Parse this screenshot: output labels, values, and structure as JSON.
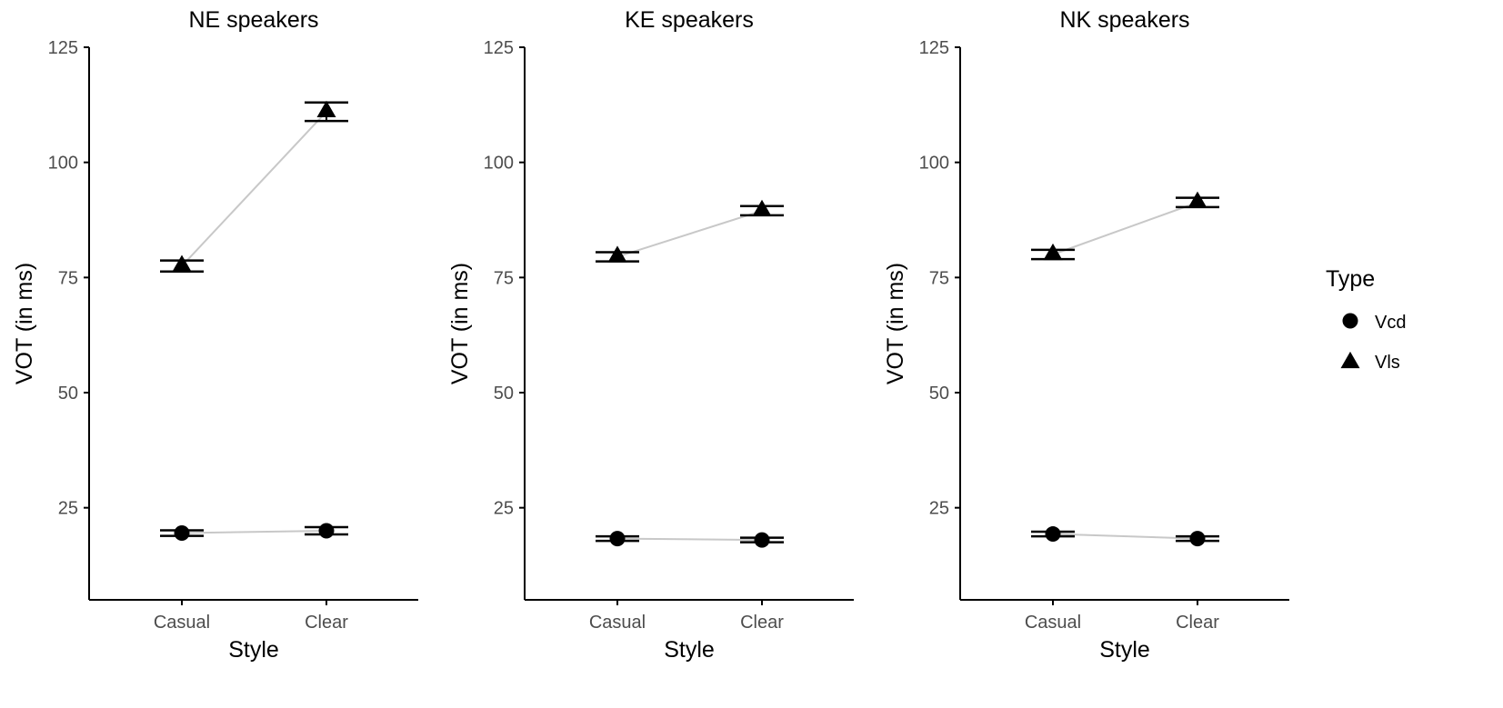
{
  "chart_data": {
    "type": "scatter",
    "x_categories": [
      "Casual",
      "Clear"
    ],
    "ylim": [
      5,
      125
    ],
    "y_ticks": [
      25,
      50,
      75,
      100,
      125
    ],
    "legend": {
      "title": "Type",
      "placement": "right",
      "entries": [
        {
          "label": "Vcd",
          "shape": "circle"
        },
        {
          "label": "Vls",
          "shape": "triangle"
        }
      ]
    },
    "colors": {
      "marker": "#000000",
      "connector": "#c8c8c8",
      "axis": "#000000"
    },
    "panels": [
      {
        "title": "NE speakers",
        "xlabel": "Style",
        "ylabel": "VOT (in ms)",
        "series": [
          {
            "name": "Vcd",
            "points": [
              {
                "x": "Casual",
                "y": 19.5,
                "lo": 18.9,
                "hi": 20.1
              },
              {
                "x": "Clear",
                "y": 20.0,
                "lo": 19.2,
                "hi": 20.8
              }
            ]
          },
          {
            "name": "Vls",
            "points": [
              {
                "x": "Casual",
                "y": 77.5,
                "lo": 76.3,
                "hi": 78.7
              },
              {
                "x": "Clear",
                "y": 111.0,
                "lo": 109.0,
                "hi": 113.0
              }
            ]
          }
        ]
      },
      {
        "title": "KE speakers",
        "xlabel": "Style",
        "ylabel": "VOT (in ms)",
        "series": [
          {
            "name": "Vcd",
            "points": [
              {
                "x": "Casual",
                "y": 18.3,
                "lo": 17.8,
                "hi": 18.8
              },
              {
                "x": "Clear",
                "y": 18.0,
                "lo": 17.5,
                "hi": 18.5
              }
            ]
          },
          {
            "name": "Vls",
            "points": [
              {
                "x": "Casual",
                "y": 79.5,
                "lo": 78.5,
                "hi": 80.5
              },
              {
                "x": "Clear",
                "y": 89.5,
                "lo": 88.5,
                "hi": 90.5
              }
            ]
          }
        ]
      },
      {
        "title": "NK speakers",
        "xlabel": "Style",
        "ylabel": "VOT (in ms)",
        "series": [
          {
            "name": "Vcd",
            "points": [
              {
                "x": "Casual",
                "y": 19.3,
                "lo": 18.8,
                "hi": 19.8
              },
              {
                "x": "Clear",
                "y": 18.3,
                "lo": 17.8,
                "hi": 18.8
              }
            ]
          },
          {
            "name": "Vls",
            "points": [
              {
                "x": "Casual",
                "y": 80.0,
                "lo": 79.0,
                "hi": 81.0
              },
              {
                "x": "Clear",
                "y": 91.3,
                "lo": 90.3,
                "hi": 92.3
              }
            ]
          }
        ]
      }
    ]
  }
}
